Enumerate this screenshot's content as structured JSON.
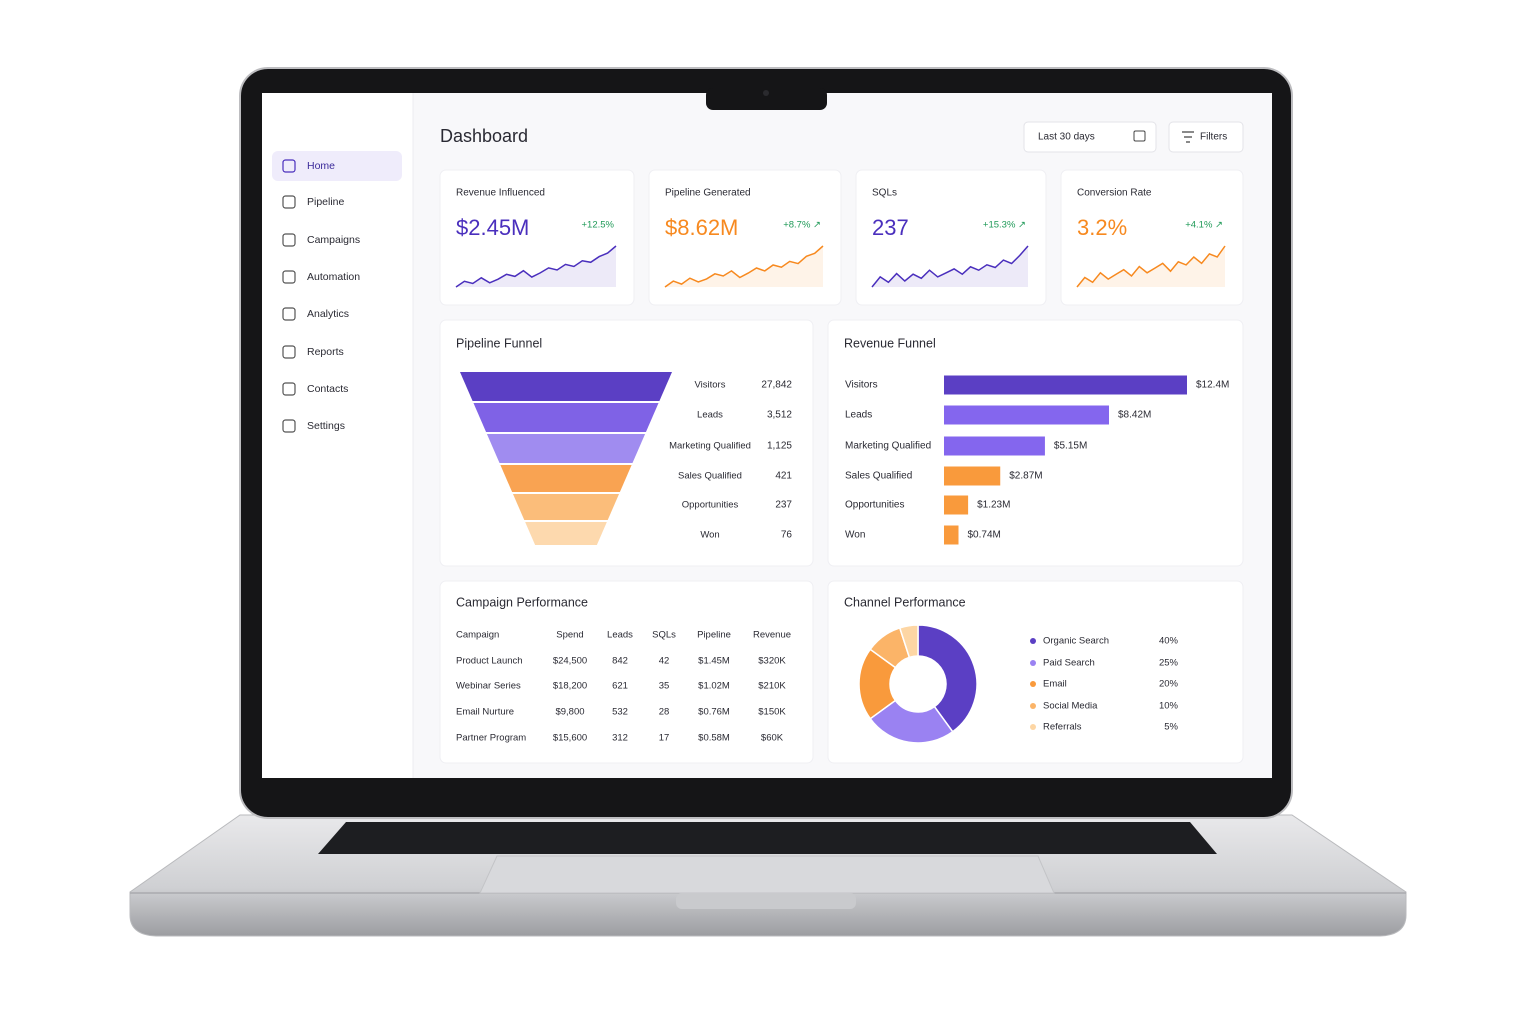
{
  "sidebar": {
    "items": [
      "Home",
      "Pipeline",
      "Campaigns",
      "Automation",
      "Analytics",
      "Reports",
      "Contacts",
      "Settings"
    ]
  },
  "header": {
    "title": "Dashboard",
    "date_range": "Last 30 days",
    "filters": "Filters"
  },
  "kpis": [
    {
      "label": "Revenue Influenced",
      "value": "$2.45M",
      "change": "+12.5%",
      "color": "#4a2fbd",
      "sparkline": [
        20,
        28,
        25,
        33,
        26,
        31,
        38,
        35,
        43,
        34,
        40,
        47,
        44,
        52,
        49,
        57,
        55,
        63,
        68,
        78
      ]
    },
    {
      "label": "Pipeline Generated",
      "value": "$8.62M",
      "change": "+8.7% ↗",
      "color": "#f7891f",
      "sparkline": [
        18,
        26,
        22,
        30,
        25,
        29,
        36,
        33,
        40,
        31,
        37,
        44,
        40,
        48,
        45,
        53,
        50,
        60,
        64,
        74
      ]
    },
    {
      "label": "SQLs",
      "value": "237",
      "change": "+15.3% ↗",
      "color": "#4a2fbd",
      "sparkline": [
        15,
        30,
        22,
        35,
        24,
        34,
        28,
        40,
        30,
        36,
        42,
        34,
        45,
        40,
        48,
        44,
        55,
        50,
        62,
        76
      ]
    },
    {
      "label": "Conversion Rate",
      "value": "3.2%",
      "change": "+4.1% ↗",
      "color": "#f7891f",
      "sparkline": [
        20,
        32,
        26,
        38,
        30,
        36,
        42,
        34,
        46,
        38,
        44,
        50,
        40,
        52,
        48,
        58,
        50,
        62,
        58,
        72
      ]
    }
  ],
  "pipeline_funnel": {
    "title": "Pipeline Funnel",
    "stages": [
      {
        "name": "Visitors",
        "count": "27,842"
      },
      {
        "name": "Leads",
        "count": "3,512"
      },
      {
        "name": "Marketing Qualified",
        "count": "1,125"
      },
      {
        "name": "Sales Qualified",
        "count": "421"
      },
      {
        "name": "Opportunities",
        "count": "237"
      },
      {
        "name": "Won",
        "count": "76"
      }
    ]
  },
  "revenue_funnel": {
    "type": "bar",
    "title": "Revenue Funnel",
    "categories": [
      "Visitors",
      "Leads",
      "Marketing Qualified",
      "Sales Qualified",
      "Opportunities",
      "Won"
    ],
    "values": [
      12.4,
      8.42,
      5.15,
      2.87,
      1.23,
      0.74
    ],
    "value_labels": [
      "$12.4M",
      "$8.42M",
      "$5.15M",
      "$2.87M",
      "$1.23M",
      "$0.74M"
    ],
    "colors": [
      "#5b3fc4",
      "#8466ee",
      "#8466ee",
      "#f99a3c",
      "#f99a3c",
      "#f99a3c"
    ]
  },
  "campaign_table": {
    "title": "Campaign Performance",
    "columns": [
      "Campaign",
      "Spend",
      "Leads",
      "SQLs",
      "Pipeline",
      "Revenue"
    ],
    "rows": [
      [
        "Product Launch",
        "$24,500",
        "842",
        "42",
        "$1.45M",
        "$320K"
      ],
      [
        "Webinar Series",
        "$18,200",
        "621",
        "35",
        "$1.02M",
        "$210K"
      ],
      [
        "Email Nurture",
        "$9,800",
        "532",
        "28",
        "$0.76M",
        "$150K"
      ],
      [
        "Partner Program",
        "$15,600",
        "312",
        "17",
        "$0.58M",
        "$60K"
      ]
    ]
  },
  "channel_performance": {
    "type": "donut",
    "title": "Channel Performance",
    "categories": [
      "Organic Search",
      "Paid Search",
      "Email",
      "Social Media",
      "Referrals"
    ],
    "values": [
      40,
      25,
      20,
      10,
      5
    ],
    "value_labels": [
      "40%",
      "25%",
      "20%",
      "10%",
      "5%"
    ],
    "colors": [
      "#5b3fc4",
      "#9a82f2",
      "#f99a3c",
      "#fbb468",
      "#fdd6a4"
    ]
  }
}
